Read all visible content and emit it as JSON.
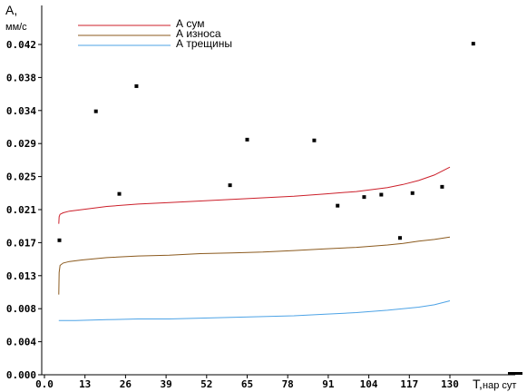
{
  "chart_data": {
    "type": "line",
    "y_axis": {
      "symbol": "A,",
      "unit": "мм/с",
      "ylim": [
        0,
        0.0441
      ],
      "ticks": [
        "0.000",
        "0.004",
        "0.008",
        "0.013",
        "0.017",
        "0.021",
        "0.025",
        "0.029",
        "0.034",
        "0.038",
        "0.042"
      ],
      "tick_values": [
        0,
        0.0042,
        0.0084,
        0.0126,
        0.0168,
        0.021,
        0.0252,
        0.0294,
        0.0336,
        0.0378,
        0.042
      ]
    },
    "x_axis": {
      "symbol": "T,",
      "unit": "нар сут",
      "xlim": [
        0,
        143
      ],
      "ticks": [
        "0.0",
        "13",
        "26",
        "39",
        "52",
        "65",
        "78",
        "91",
        "104",
        "117",
        "130"
      ],
      "tick_values": [
        0,
        13,
        26,
        39,
        52,
        65,
        78,
        91,
        104,
        117,
        130
      ]
    },
    "legend": {
      "placement": "top-left"
    },
    "grid": false,
    "series": [
      {
        "name": "А сум",
        "color": "#cc1f2a",
        "x": [
          4.6,
          4.7,
          5,
          6,
          8,
          12,
          20,
          30,
          40,
          50,
          60,
          70,
          80,
          90,
          100,
          110,
          115,
          120,
          125,
          128,
          130
        ],
        "y": [
          0.0192,
          0.0201,
          0.0204,
          0.0206,
          0.0208,
          0.021,
          0.0214,
          0.0217,
          0.0219,
          0.0221,
          0.0223,
          0.0225,
          0.0227,
          0.023,
          0.0233,
          0.0238,
          0.0242,
          0.0247,
          0.0254,
          0.026,
          0.0264
        ]
      },
      {
        "name": "А износа",
        "color": "#8b5a1e",
        "x": [
          4.6,
          4.7,
          5,
          6,
          8,
          12,
          20,
          30,
          40,
          50,
          60,
          70,
          80,
          90,
          100,
          110,
          115,
          120,
          125,
          130
        ],
        "y": [
          0.0102,
          0.013,
          0.0139,
          0.0142,
          0.0144,
          0.0146,
          0.0149,
          0.0151,
          0.0152,
          0.0154,
          0.0155,
          0.0156,
          0.0158,
          0.016,
          0.0162,
          0.0165,
          0.0167,
          0.017,
          0.0172,
          0.0175
        ]
      },
      {
        "name": "А трещины",
        "color": "#4da3e6",
        "x": [
          4.6,
          10,
          20,
          30,
          40,
          50,
          60,
          70,
          80,
          90,
          100,
          110,
          120,
          125,
          130
        ],
        "y": [
          0.0069,
          0.0069,
          0.007,
          0.0071,
          0.0071,
          0.0072,
          0.0073,
          0.0074,
          0.0075,
          0.0077,
          0.0079,
          0.0082,
          0.0086,
          0.0089,
          0.0094
        ]
      },
      {
        "name": "",
        "type": "scatter",
        "color": "#000000",
        "x": [
          4.8,
          16.5,
          24,
          29.5,
          59.5,
          65,
          86.5,
          94,
          102.5,
          108,
          114,
          118,
          127.5,
          137.5
        ],
        "y": [
          0.0171,
          0.0335,
          0.023,
          0.0367,
          0.0241,
          0.0299,
          0.0298,
          0.0215,
          0.0226,
          0.0229,
          0.0174,
          0.0231,
          0.0239,
          0.0421
        ]
      }
    ]
  }
}
